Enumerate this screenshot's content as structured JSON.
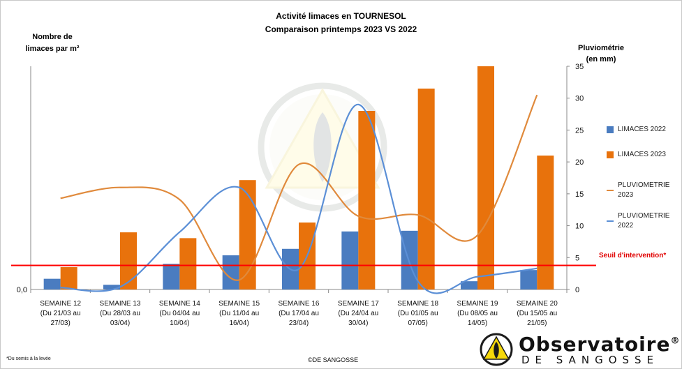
{
  "title_line1": "Activité limaces en TOURNESOL",
  "title_line2": "Comparaison printemps 2023 VS 2022",
  "left_axis_label_line1": "Nombre de",
  "left_axis_label_line2": "limaces par m²",
  "right_axis_label_line1": "Pluviométrie",
  "right_axis_label_line2": "(en mm)",
  "threshold_label": "Seuil d'intervention*",
  "footnote": "Du semis à la levée",
  "footnote_marker": "*",
  "copyright": "©DE SANGOSSE",
  "logo": {
    "name": "Observatoire",
    "registered": "®",
    "sub": "DE SANGOSSE"
  },
  "colors": {
    "limaces_2022": "#4a7cc0",
    "limaces_2023": "#e8720c",
    "pluvio_2023": "#e08a3c",
    "pluvio_2022": "#5b8fd6",
    "threshold": "#ff0000"
  },
  "chart_data": {
    "type": "bar",
    "title": "Activité limaces en TOURNESOL - Comparaison printemps 2023 VS 2022",
    "categories": [
      {
        "week": "SEMAINE 12",
        "range1": "(Du 21/03 au",
        "range2": "27/03)"
      },
      {
        "week": "SEMAINE 13",
        "range1": "(Du 28/03 au",
        "range2": "03/04)"
      },
      {
        "week": "SEMAINE 14",
        "range1": "(Du 04/04 au",
        "range2": "10/04)"
      },
      {
        "week": "SEMAINE 15",
        "range1": "(Du 11/04 au",
        "range2": "16/04)"
      },
      {
        "week": "SEMAINE 16",
        "range1": "(Du 17/04 au",
        "range2": "23/04)"
      },
      {
        "week": "SEMAINE 17",
        "range1": "(Du 24/04 au",
        "range2": "30/04)"
      },
      {
        "week": "SEMAINE 18",
        "range1": "(Du 01/05 au",
        "range2": "07/05)"
      },
      {
        "week": "SEMAINE 19",
        "range1": "(Du 08/05 au",
        "range2": "14/05)"
      },
      {
        "week": "SEMAINE 20",
        "range1": "(Du 15/05 au",
        "range2": "21/05)"
      }
    ],
    "left_axis": {
      "label": "Nombre de limaces par m²",
      "tick_labels": [
        "0,0"
      ],
      "relative_max": 100
    },
    "right_axis": {
      "label": "Pluviométrie (en mm)",
      "ylim": [
        0,
        35
      ],
      "ticks": [
        0,
        5,
        10,
        15,
        20,
        25,
        30,
        35
      ]
    },
    "series": [
      {
        "name": "LIMACES 2022",
        "kind": "bar",
        "axis": "left",
        "values": [
          4.8,
          2.1,
          11.5,
          15.3,
          18.2,
          26.0,
          26.3,
          3.7,
          8.7
        ]
      },
      {
        "name": "LIMACES 2023",
        "kind": "bar",
        "axis": "left",
        "values": [
          10.0,
          25.6,
          23.0,
          49.0,
          30.0,
          80.0,
          90.0,
          100.0,
          60.0
        ]
      },
      {
        "name": "PLUVIOMETRIE 2023",
        "kind": "line",
        "axis": "right",
        "values": [
          14.3,
          16.0,
          14.1,
          1.5,
          19.6,
          11.5,
          11.7,
          8.5,
          30.5
        ]
      },
      {
        "name": "PLUVIOMETRIE 2022",
        "kind": "line",
        "axis": "right",
        "values": [
          0.3,
          0.4,
          9.0,
          16.0,
          3.2,
          29.0,
          1.3,
          2.0,
          3.3
        ]
      }
    ],
    "threshold": {
      "label": "Seuil d'intervention*",
      "left_value": 10.8
    },
    "legend_position": "right",
    "grid": false
  }
}
